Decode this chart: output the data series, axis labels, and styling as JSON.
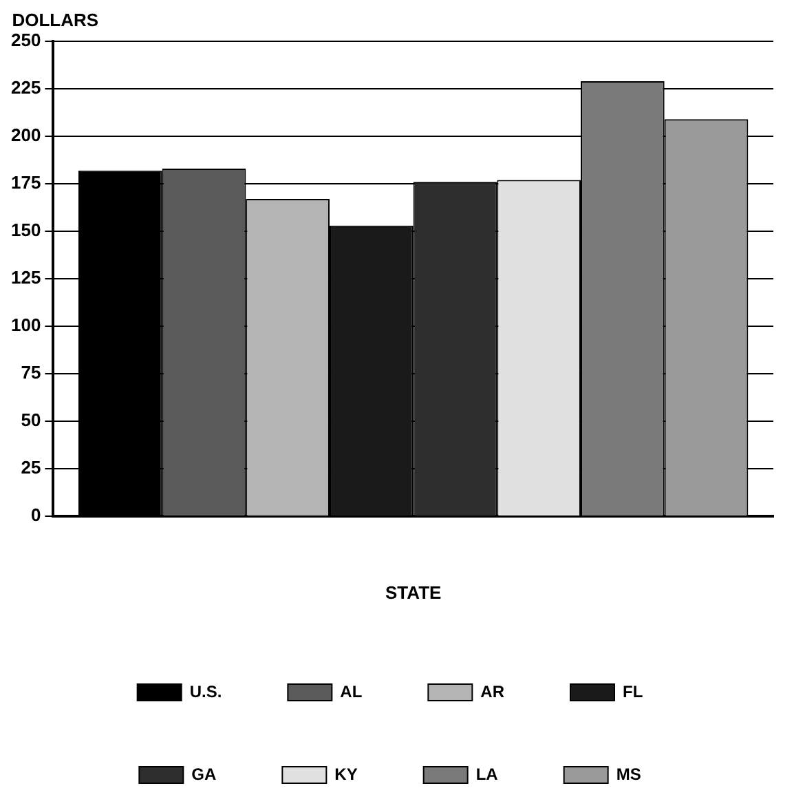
{
  "chart_data": {
    "type": "bar",
    "xlabel": "STATE",
    "ylabel": "DOLLARS",
    "categories": [
      null
    ],
    "series": [
      {
        "name": "U.S.",
        "color": "#000000",
        "values": [
          182
        ]
      },
      {
        "name": "AL",
        "color": "#5a5a5a",
        "values": [
          183
        ]
      },
      {
        "name": "AR",
        "color": "#b4b4b4",
        "values": [
          167
        ]
      },
      {
        "name": "FL",
        "color": "#1a1a1a",
        "values": [
          153
        ]
      },
      {
        "name": "GA",
        "color": "#2e2e2e",
        "values": [
          176
        ]
      },
      {
        "name": "KY",
        "color": "#e0e0e0",
        "values": [
          177
        ]
      },
      {
        "name": "LA",
        "color": "#7a7a7a",
        "values": [
          229
        ]
      },
      {
        "name": "MS",
        "color": "#9a9a9a",
        "values": [
          209
        ]
      }
    ],
    "ylim": [
      0,
      250
    ],
    "yticks": [
      0,
      25,
      50,
      75,
      100,
      125,
      150,
      175,
      200,
      225,
      250
    ],
    "grid": "y",
    "legend": "bottom"
  }
}
